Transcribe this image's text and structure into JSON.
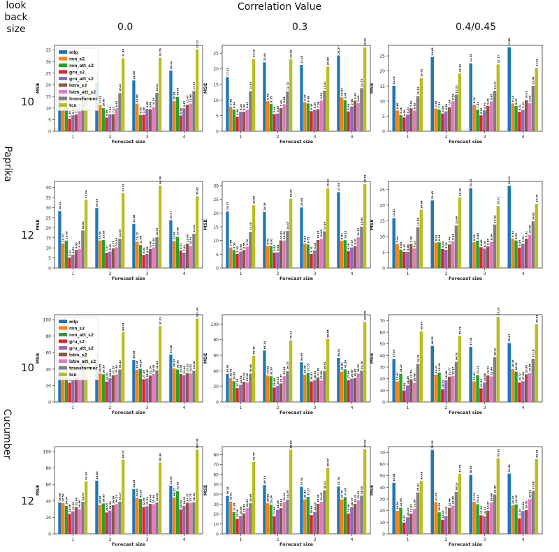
{
  "header": {
    "lookback_label_line1": "look",
    "lookback_label_line2": "back",
    "lookback_label_line3": "size",
    "correlation_title": "Correlation Value",
    "col_labels": [
      "0.0",
      "0.3",
      "0.4/0.45"
    ]
  },
  "row_groups": [
    {
      "dataset": "Paprika",
      "lookbacks": [
        "10",
        "12"
      ]
    },
    {
      "dataset": "Cucumber",
      "lookbacks": [
        "10",
        "12"
      ]
    }
  ],
  "series_names": [
    "mlp",
    "rnn_s2",
    "rnn_att_s2",
    "gru_s2",
    "gru_att_s2",
    "lstm_s2",
    "lstm_att_s2",
    "transformer",
    "tcn"
  ],
  "series_colors": [
    "#1f77b4",
    "#ff7f0e",
    "#2ca02c",
    "#d62728",
    "#9467bd",
    "#8c564b",
    "#e377c2",
    "#7f7f7f",
    "#bcbd22"
  ],
  "chart_data": [
    {
      "type": "bar",
      "dataset": "Paprika",
      "lookback": 10,
      "correlation": "0.0",
      "xlabel": "Forecast size",
      "ylabel": "MSE",
      "categories": [
        "1",
        "2",
        "3",
        "4"
      ],
      "ylim": [
        0,
        37
      ],
      "yticks": [
        0,
        5,
        10,
        15,
        20,
        25,
        30,
        35
      ],
      "legend": true,
      "values": [
        [
          15.97,
          21.47,
          21.89,
          26.11
        ],
        [
          10.04,
          11.31,
          11.89,
          12.95
        ],
        [
          10.42,
          10.0,
          7.03,
          14.79
        ],
        [
          5.39,
          5.89,
          7.08,
          6.8
        ],
        [
          6.88,
          7.31,
          9.6,
          9.87
        ],
        [
          7.2,
          7.31,
          9.46,
          11.45
        ],
        [
          8.62,
          9.82,
          10.39,
          11.9
        ],
        [
          15.15,
          16.43,
          16.51,
          17.29
        ],
        [
          21.46,
          31.46,
          31.7,
          35.22
        ]
      ]
    },
    {
      "type": "bar",
      "dataset": "Paprika",
      "lookback": 10,
      "correlation": "0.3",
      "xlabel": "Forecast size",
      "ylabel": "MSE",
      "categories": [
        "1",
        "2",
        "3",
        "4"
      ],
      "ylim": [
        0,
        27.5
      ],
      "yticks": [
        0,
        5,
        10,
        15,
        20,
        25
      ],
      "legend": false,
      "values": [
        [
          17.33,
          22.04,
          21.25,
          24.27
        ],
        [
          7.9,
          9.59,
          9.3,
          10.87
        ],
        [
          6.94,
          8.75,
          8.88,
          9.96
        ],
        [
          4.66,
          5.49,
          6.42,
          6.34
        ],
        [
          6.26,
          5.66,
          6.89,
          7.9
        ],
        [
          6.2,
          7.44,
          7.04,
          9.84
        ],
        [
          6.93,
          8.64,
          9.89,
          9.0
        ],
        [
          12.85,
          12.72,
          13.01,
          13.79
        ],
        [
          23.16,
          23.06,
          20.68,
          26.83
        ]
      ]
    },
    {
      "type": "bar",
      "dataset": "Paprika",
      "lookback": 10,
      "correlation": "0.4/0.45",
      "xlabel": "Forecast size",
      "ylabel": "MSE",
      "categories": [
        "1",
        "2",
        "3",
        "4"
      ],
      "ylim": [
        0,
        28.5
      ],
      "yticks": [
        0,
        5,
        10,
        15,
        20,
        25
      ],
      "legend": false,
      "values": [
        [
          15.1,
          24.66,
          22.54,
          27.88
        ],
        [
          6.88,
          7.54,
          8.76,
          9.21
        ],
        [
          5.36,
          7.22,
          7.22,
          8.37
        ],
        [
          4.56,
          5.85,
          5.26,
          6.41
        ],
        [
          5.51,
          6.59,
          6.97,
          7.13
        ],
        [
          7.63,
          7.96,
          8.36,
          10.33
        ],
        [
          6.85,
          9.92,
          9.87,
          9.3
        ],
        [
          11.61,
          12.15,
          13.43,
          15.06
        ],
        [
          17.61,
          19.19,
          22.15,
          21.02
        ]
      ]
    },
    {
      "type": "bar",
      "dataset": "Paprika",
      "lookback": 12,
      "correlation": "0.0",
      "xlabel": "Forecast size",
      "ylabel": "MSE",
      "categories": [
        "1",
        "2",
        "3",
        "4"
      ],
      "ylim": [
        0,
        43
      ],
      "yticks": [
        0,
        5,
        10,
        15,
        20,
        25,
        30,
        35,
        40
      ],
      "legend": false,
      "values": [
        [
          28.32,
          29.75,
          21.88,
          23.77
        ],
        [
          12.22,
          13.59,
          13.12,
          13.4
        ],
        [
          13.6,
          13.89,
          11.4,
          15.48
        ],
        [
          5.22,
          7.57,
          6.44,
          8.72
        ],
        [
          6.63,
          8.12,
          6.91,
          7.64
        ],
        [
          8.95,
          9.79,
          9.46,
          12.09
        ],
        [
          9.5,
          10.29,
          10.2,
          10.91
        ],
        [
          18.62,
          14.59,
          15.33,
          17.01
        ],
        [
          33.94,
          37.22,
          40.98,
          35.62
        ]
      ]
    },
    {
      "type": "bar",
      "dataset": "Paprika",
      "lookback": 12,
      "correlation": "0.3",
      "xlabel": "Forecast size",
      "ylabel": "MSE",
      "categories": [
        "1",
        "2",
        "3",
        "4"
      ],
      "ylim": [
        0,
        31.5
      ],
      "yticks": [
        0,
        5,
        10,
        15,
        20,
        25,
        30
      ],
      "legend": false,
      "values": [
        [
          20.57,
          20.39,
          22.04,
          27.59
        ],
        [
          7.46,
          8.01,
          8.93,
          9.87
        ],
        [
          6.59,
          8.01,
          8.55,
          10.13
        ],
        [
          5.1,
          5.62,
          5.11,
          6.18
        ],
        [
          5.95,
          5.68,
          6.45,
          7.47
        ],
        [
          6.55,
          10.03,
          10.16,
          8.01
        ],
        [
          7.72,
          10.0,
          10.6,
          11.17
        ],
        [
          13.2,
          13.47,
          13.38,
          15.05
        ],
        [
          22.84,
          25.2,
          29.01,
          30.54
        ]
      ]
    },
    {
      "type": "bar",
      "dataset": "Paprika",
      "lookback": 12,
      "correlation": "0.4/0.45",
      "xlabel": "Forecast size",
      "ylabel": "MSE",
      "categories": [
        "1",
        "2",
        "3",
        "4"
      ],
      "ylim": [
        0,
        27.5
      ],
      "yticks": [
        0,
        5,
        10,
        15,
        20,
        25
      ],
      "legend": false,
      "values": [
        [
          15.81,
          21.45,
          25.35,
          26.13
        ],
        [
          7.64,
          8.12,
          8.18,
          9.35
        ],
        [
          5.83,
          8.16,
          8.68,
          8.72
        ],
        [
          5.13,
          6.03,
          6.6,
          6.49
        ],
        [
          5.08,
          5.75,
          6.16,
          7.7
        ],
        [
          7.66,
          7.49,
          6.85,
          9.32
        ],
        [
          6.22,
          8.46,
          8.34,
          10.59
        ],
        [
          12.96,
          13.49,
          13.8,
          14.81
        ],
        [
          18.44,
          22.4,
          19.71,
          20.4
        ]
      ]
    },
    {
      "type": "bar",
      "dataset": "Cucumber",
      "lookback": 10,
      "correlation": "0.0",
      "xlabel": "Forecast size",
      "ylabel": "MSE",
      "categories": [
        "1",
        "2",
        "3",
        "4"
      ],
      "ylim": [
        0,
        106
      ],
      "yticks": [
        0,
        20,
        40,
        60,
        80,
        100
      ],
      "legend": true,
      "values": [
        [
          40.44,
          47.19,
          50.88,
          57.48
        ],
        [
          30.51,
          34.65,
          39.05,
          40.87
        ],
        [
          29.4,
          33.59,
          40.24,
          39.52
        ],
        [
          23.43,
          24.81,
          27.58,
          33.98
        ],
        [
          26.9,
          28.81,
          28.42,
          32.66
        ],
        [
          30.11,
          32.59,
          32.14,
          35.2
        ],
        [
          35.21,
          33.49,
          34.05,
          34.81
        ],
        [
          45.71,
          39.43,
          38.45,
          38.08
        ],
        [
          63.4,
          84.93,
          92.23,
          101.3
        ]
      ]
    },
    {
      "type": "bar",
      "dataset": "Cucumber",
      "lookback": 10,
      "correlation": "0.3",
      "xlabel": "Forecast size",
      "ylabel": "MSE",
      "categories": [
        "1",
        "2",
        "3",
        "4"
      ],
      "ylim": [
        0,
        112
      ],
      "yticks": [
        0,
        20,
        40,
        60,
        80,
        100
      ],
      "legend": false,
      "values": [
        [
          35.97,
          66.14,
          50.95,
          56.51
        ],
        [
          30.72,
          34.03,
          35.08,
          38.83
        ],
        [
          26.65,
          32.97,
          37.55,
          41.89
        ],
        [
          17.79,
          18.6,
          26.42,
          27.99
        ],
        [
          22.01,
          20.52,
          28.02,
          29.97
        ],
        [
          25.92,
          23.77,
          31.68,
          30.65
        ],
        [
          25.02,
          33.14,
          27.6,
          36.53
        ],
        [
          36.46,
          39.75,
          40.01,
          40.36
        ],
        [
          59.45,
          79.14,
          80.95,
          102.7
        ]
      ]
    },
    {
      "type": "bar",
      "dataset": "Cucumber",
      "lookback": 10,
      "correlation": "0.4/0.45",
      "xlabel": "Forecast size",
      "ylabel": "MSE",
      "categories": [
        "1",
        "2",
        "3",
        "4"
      ],
      "ylim": [
        0,
        75
      ],
      "yticks": [
        0,
        10,
        20,
        30,
        40,
        50,
        60,
        70
      ],
      "legend": false,
      "values": [
        [
          37.03,
          48.23,
          47.38,
          50.61
        ],
        [
          17.61,
          23.51,
          17.62,
          28.36
        ],
        [
          24.27,
          25.28,
          23.11,
          26.12
        ],
        [
          9.85,
          10.93,
          11.74,
          16.72
        ],
        [
          14.26,
          18.6,
          16.68,
          17.83
        ],
        [
          19.5,
          21.77,
          22.91,
          23.8
        ],
        [
          16.48,
          22.17,
          21.94,
          24.86
        ],
        [
          32.72,
          34.51,
          38.41,
          37.18
        ],
        [
          60.89,
          56.78,
          73.2,
          66.99
        ]
      ]
    },
    {
      "type": "bar",
      "dataset": "Cucumber",
      "lookback": 12,
      "correlation": "0.0",
      "xlabel": "Forecast size",
      "ylabel": "MSE",
      "categories": [
        "1",
        "2",
        "3",
        "4"
      ],
      "ylim": [
        0,
        106
      ],
      "yticks": [
        0,
        20,
        40,
        60,
        80,
        100
      ],
      "legend": false,
      "values": [
        [
          38.09,
          64.64,
          54.35,
          58.65
        ],
        [
          37.52,
          34.83,
          43.63,
          44.22
        ],
        [
          34.07,
          36.95,
          42.36,
          51.93
        ],
        [
          24.46,
          26.05,
          32.56,
          29.62
        ],
        [
          27.35,
          28.34,
          33.53,
          34.12
        ],
        [
          32.68,
          34.88,
          36.4,
          37.77
        ],
        [
          29.9,
          36.22,
          35.98,
          37.77
        ],
        [
          38.97,
          39.17,
          38.05,
          38.26
        ],
        [
          63.94,
          90.15,
          86.8,
          102.3
        ]
      ]
    },
    {
      "type": "bar",
      "dataset": "Cucumber",
      "lookback": 12,
      "correlation": "0.3",
      "xlabel": "Forecast size",
      "ylabel": "MSE",
      "categories": [
        "1",
        "2",
        "3",
        "4"
      ],
      "ylim": [
        0,
        88
      ],
      "yticks": [
        0,
        10,
        20,
        30,
        40,
        50,
        60,
        70,
        80
      ],
      "legend": false,
      "values": [
        [
          38.26,
          49.13,
          47.52,
          47.7
        ],
        [
          32.61,
          30.85,
          34.82,
          34.76
        ],
        [
          21.89,
          29.34,
          37.27,
          37.09
        ],
        [
          15.19,
          17.83,
          18.9,
          20.5
        ],
        [
          18.06,
          24.29,
          22.15,
          26.77
        ],
        [
          20.69,
          26.12,
          30.38,
          30.32
        ],
        [
          25.91,
          32.14,
          32.42,
          33.91
        ],
        [
          30.9,
          34.59,
          44.01,
          38.55
        ],
        [
          72.74,
          84.83,
          66.57,
          85.6
        ]
      ]
    },
    {
      "type": "bar",
      "dataset": "Cucumber",
      "lookback": 12,
      "correlation": "0.4/0.45",
      "xlabel": "Forecast size",
      "ylabel": "MSE",
      "categories": [
        "1",
        "2",
        "3",
        "4"
      ],
      "ylim": [
        0,
        75
      ],
      "yticks": [
        0,
        10,
        20,
        30,
        40,
        50,
        60,
        70
      ],
      "legend": false,
      "values": [
        [
          43.88,
          72.25,
          50.59,
          51.85
        ],
        [
          19.84,
          27.34,
          27.51,
          24.53
        ],
        [
          22.53,
          18.53,
          25.43,
          25.3
        ],
        [
          9.71,
          12.15,
          15.98,
          13.34
        ],
        [
          14.23,
          15.38,
          15.12,
          19.68
        ],
        [
          17.47,
          22.4,
          19.97,
          20.5
        ],
        [
          21.68,
          24.28,
          26.86,
          29.83
        ],
        [
          35.61,
          36.13,
          33.86,
          37.06
        ],
        [
          45.46,
          51.55,
          65.02,
          64.32
        ]
      ]
    }
  ]
}
